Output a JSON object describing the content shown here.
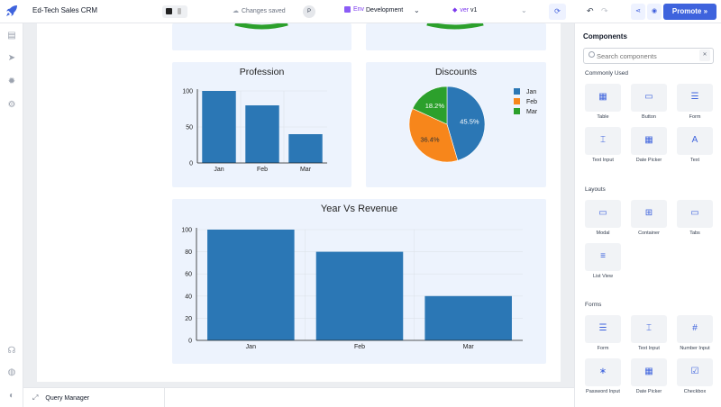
{
  "header": {
    "app_title": "Ed-Tech Sales CRM",
    "save_status": "Changes saved",
    "avatar_initial": "P",
    "env_label": "Env",
    "env_value": "Development",
    "ver_label": "ver",
    "ver_value": "v1",
    "promote_label": "Promote"
  },
  "colors": {
    "accent": "#3e63dd",
    "bar": "#2b77b5",
    "orange": "#f7861b",
    "green": "#2ca02c",
    "card_bg": "#edf3fd"
  },
  "charts": [
    {
      "type": "bar",
      "title": "Profession",
      "categories": [
        "Jan",
        "Feb",
        "Mar"
      ],
      "values": [
        100,
        80,
        40
      ],
      "yticks": [
        0,
        50,
        100
      ],
      "ylim": [
        0,
        100
      ]
    },
    {
      "type": "pie",
      "title": "Discounts",
      "slices": [
        {
          "label": "Jan",
          "value": 45.5,
          "text": "45.5%",
          "color": "#2b77b5"
        },
        {
          "label": "Feb",
          "value": 36.4,
          "text": "36.4%",
          "color": "#f7861b"
        },
        {
          "label": "Mar",
          "value": 18.2,
          "text": "18.2%",
          "color": "#2ca02c"
        }
      ],
      "legend_position": "right"
    },
    {
      "type": "bar",
      "title": "Year Vs Revenue",
      "categories": [
        "Jan",
        "Feb",
        "Mar"
      ],
      "values": [
        100,
        80,
        40
      ],
      "yticks": [
        0,
        20,
        40,
        60,
        80,
        100
      ],
      "ylim": [
        0,
        100
      ]
    }
  ],
  "bottom": {
    "query_manager_label": "Query Manager"
  },
  "components": {
    "title": "Components",
    "search_placeholder": "Search components",
    "sections": [
      {
        "name": "Commonly Used",
        "items": [
          {
            "label": "Table",
            "icon": "table-icon"
          },
          {
            "label": "Button",
            "icon": "button-icon"
          },
          {
            "label": "Form",
            "icon": "form-icon"
          },
          {
            "label": "Text Input",
            "icon": "text-input-icon"
          },
          {
            "label": "Date Picker",
            "icon": "date-picker-icon"
          },
          {
            "label": "Text",
            "icon": "text-icon"
          }
        ]
      },
      {
        "name": "Layouts",
        "items": [
          {
            "label": "Modal",
            "icon": "modal-icon"
          },
          {
            "label": "Container",
            "icon": "container-icon"
          },
          {
            "label": "Tabs",
            "icon": "tabs-icon"
          },
          {
            "label": "List View",
            "icon": "list-view-icon"
          }
        ]
      },
      {
        "name": "Forms",
        "items": [
          {
            "label": "Form",
            "icon": "form-icon"
          },
          {
            "label": "Text Input",
            "icon": "text-input-icon"
          },
          {
            "label": "Number Input",
            "icon": "number-input-icon"
          },
          {
            "label": "Password Input",
            "icon": "password-input-icon"
          },
          {
            "label": "Date Picker",
            "icon": "date-picker-icon"
          },
          {
            "label": "Checkbox",
            "icon": "checkbox-icon"
          }
        ]
      }
    ]
  }
}
